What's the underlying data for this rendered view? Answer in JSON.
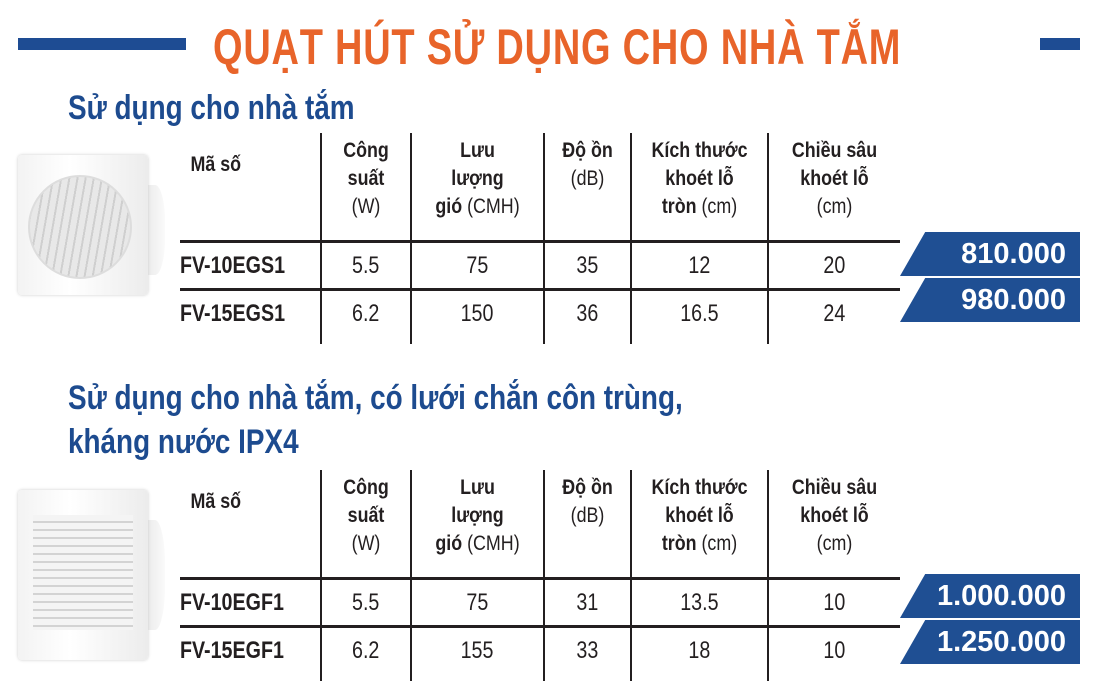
{
  "title": "QUẠT HÚT SỬ DỤNG CHO NHÀ TẮM",
  "colors": {
    "title": "#e8642a",
    "accent": "#1e4c93"
  },
  "headers": [
    {
      "lines": [
        "Mã số"
      ]
    },
    {
      "lines": [
        "Công",
        "suất"
      ],
      "unit": "(W)"
    },
    {
      "lines": [
        "Lưu",
        "lượng"
      ],
      "last": "gió",
      "unit": "(CMH)"
    },
    {
      "lines": [
        "Độ ồn"
      ],
      "unit": "(dB)"
    },
    {
      "lines": [
        "Kích thước",
        "khoét lỗ"
      ],
      "last": "tròn",
      "unit": "(cm)"
    },
    {
      "lines": [
        "Chiều sâu",
        "khoét lỗ"
      ],
      "unit": "(cm)"
    }
  ],
  "sections": [
    {
      "heading": [
        "Sử dụng cho nhà tắm"
      ],
      "image": "bathroom-fan-round-grille",
      "rows": [
        {
          "cells": [
            "FV-10EGS1",
            "5.5",
            "75",
            "35",
            "12",
            "20"
          ],
          "price": "810.000"
        },
        {
          "cells": [
            "FV-15EGS1",
            "6.2",
            "150",
            "36",
            "16.5",
            "24"
          ],
          "price": "980.000"
        }
      ]
    },
    {
      "heading": [
        "Sử dụng cho nhà tắm, có lưới chắn côn trùng,",
        "kháng nước IPX4"
      ],
      "image": "bathroom-fan-louver-grille",
      "rows": [
        {
          "cells": [
            "FV-10EGF1",
            "5.5",
            "75",
            "31",
            "13.5",
            "10"
          ],
          "price": "1.000.000"
        },
        {
          "cells": [
            "FV-15EGF1",
            "6.2",
            "155",
            "33",
            "18",
            "10"
          ],
          "price": "1.250.000"
        }
      ]
    }
  ]
}
